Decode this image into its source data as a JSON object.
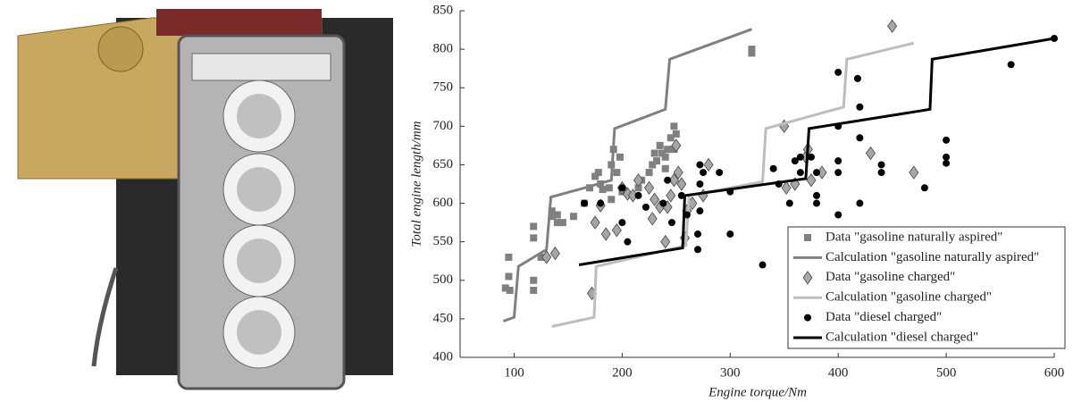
{
  "chart_data": {
    "type": "scatter",
    "xlabel": "Engine torque/Nm",
    "ylabel": "Total engine length/mm",
    "xlim": [
      50,
      600
    ],
    "ylim": [
      400,
      850
    ],
    "xticks": [
      100,
      200,
      300,
      400,
      500,
      600
    ],
    "yticks": [
      400,
      450,
      500,
      550,
      600,
      650,
      700,
      750,
      800,
      850
    ],
    "legend": "lower right",
    "series": [
      {
        "name": "Data \"gasoline naturally aspired\"",
        "type": "scatter",
        "marker": "square",
        "color": "#808080",
        "x": [
          92,
          95,
          95,
          96,
          118,
          118,
          118,
          118,
          125,
          135,
          135,
          140,
          140,
          145,
          155,
          165,
          170,
          175,
          178,
          180,
          182,
          188,
          190,
          190,
          192,
          195,
          198,
          200,
          215,
          218,
          225,
          228,
          230,
          232,
          235,
          237,
          240,
          240,
          242,
          245,
          248,
          248,
          250,
          320,
          320
        ],
        "values": [
          490,
          530,
          505,
          487,
          570,
          555,
          500,
          487,
          530,
          583,
          590,
          585,
          575,
          575,
          583,
          600,
          620,
          635,
          640,
          625,
          618,
          620,
          605,
          650,
          670,
          640,
          660,
          615,
          620,
          630,
          640,
          650,
          665,
          655,
          675,
          665,
          645,
          660,
          670,
          685,
          670,
          700,
          690,
          800,
          795
        ]
      },
      {
        "name": "Calculation \"gasoline naturally aspired\"",
        "type": "line",
        "color": "#808080",
        "x": [
          90,
          100,
          104,
          130,
          134,
          160,
          190,
          193,
          240,
          244,
          320
        ],
        "values": [
          447,
          452,
          518,
          540,
          608,
          618,
          630,
          697,
          722,
          787,
          826
        ]
      },
      {
        "name": "Data \"gasoline charged\"",
        "type": "scatter",
        "marker": "diamond",
        "color": "#a6a6a6",
        "x": [
          130,
          138,
          172,
          175,
          180,
          185,
          195,
          200,
          205,
          210,
          215,
          225,
          228,
          230,
          235,
          240,
          242,
          245,
          248,
          250,
          252,
          255,
          258,
          260,
          265,
          275,
          280,
          350,
          352,
          360,
          370,
          372,
          375,
          385,
          430,
          450,
          470
        ],
        "values": [
          530,
          535,
          483,
          575,
          597,
          560,
          565,
          620,
          612,
          610,
          630,
          620,
          580,
          605,
          595,
          550,
          595,
          610,
          630,
          675,
          640,
          625,
          555,
          590,
          600,
          610,
          650,
          700,
          620,
          625,
          660,
          670,
          630,
          640,
          665,
          830,
          640
        ]
      },
      {
        "name": "Calculation \"gasoline charged\"",
        "type": "line",
        "color": "#bdbdbd",
        "x": [
          135,
          174,
          176,
          259,
          262,
          330,
          333,
          405,
          408,
          470
        ],
        "values": [
          440,
          452,
          518,
          545,
          610,
          628,
          697,
          725,
          787,
          808
        ]
      },
      {
        "name": "Data \"diesel charged\"",
        "type": "scatter",
        "marker": "circle",
        "color": "#000000",
        "x": [
          165,
          180,
          200,
          205,
          200,
          215,
          222,
          238,
          242,
          246,
          255,
          260,
          270,
          270,
          272,
          272,
          272,
          275,
          290,
          300,
          300,
          330,
          340,
          345,
          355,
          360,
          365,
          365,
          375,
          380,
          380,
          380,
          400,
          400,
          400,
          400,
          400,
          418,
          420,
          420,
          420,
          440,
          440,
          480,
          500,
          500,
          500,
          560,
          600
        ],
        "values": [
          600,
          600,
          575,
          550,
          620,
          610,
          595,
          600,
          630,
          575,
          610,
          585,
          560,
          540,
          590,
          625,
          650,
          640,
          640,
          560,
          615,
          520,
          645,
          625,
          600,
          655,
          640,
          660,
          660,
          640,
          610,
          600,
          770,
          700,
          585,
          655,
          640,
          762,
          725,
          685,
          600,
          640,
          650,
          620,
          682,
          660,
          652,
          780,
          814
        ]
      },
      {
        "name": "Calculation \"diesel charged\"",
        "type": "line",
        "color": "#000000",
        "x": [
          160,
          256,
          258,
          370,
          373,
          485,
          487,
          600
        ],
        "values": [
          520,
          542,
          610,
          632,
          697,
          722,
          787,
          814
        ]
      }
    ]
  }
}
